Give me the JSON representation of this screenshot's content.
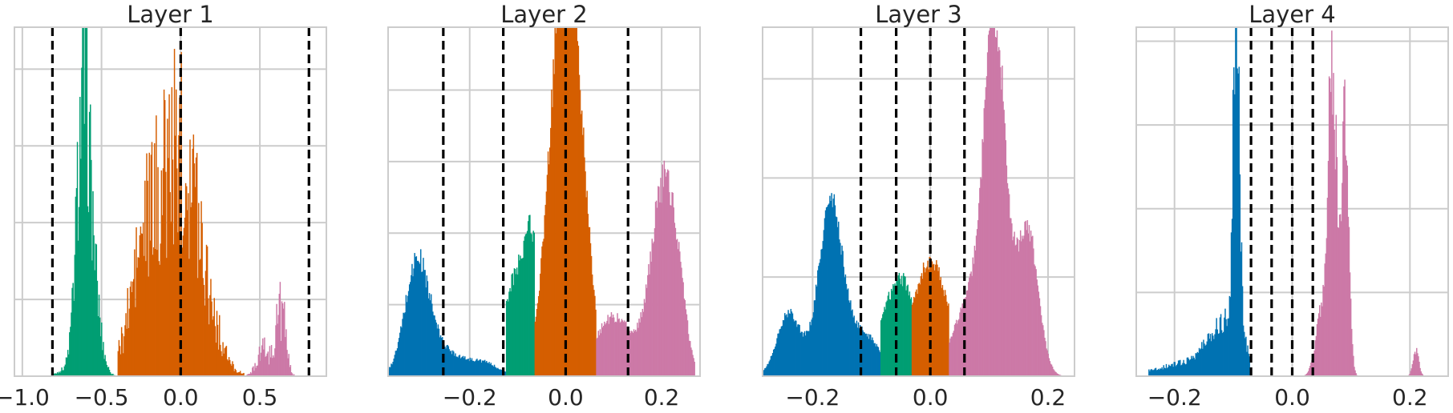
{
  "chart_data": [
    {
      "type": "histogram",
      "title": "Layer 1",
      "xlim": [
        -1.05,
        0.92
      ],
      "xticks": [
        -1.0,
        -0.5,
        0.0,
        0.5
      ],
      "xtick_labels": [
        "−1.0",
        "−0.5",
        "0.0",
        "0.5"
      ],
      "ylim": [
        0,
        1.0
      ],
      "yticks": [
        0.0,
        0.22,
        0.44,
        0.66,
        0.88
      ],
      "grid": true,
      "threshold_lines": [
        -0.81,
        0.0,
        0.81
      ],
      "series": [
        {
          "color": "#009E73",
          "range": [
            -0.81,
            -0.4
          ],
          "peaks": [
            [
              -0.71,
              0.02,
              0.06
            ],
            [
              -0.62,
              0.62,
              0.04
            ],
            [
              -0.57,
              0.3,
              0.05
            ]
          ],
          "noise": 0.35
        },
        {
          "color": "#D55E00",
          "range": [
            -0.4,
            0.4
          ],
          "peaks": [
            [
              -0.08,
              0.4,
              0.14
            ],
            [
              0.05,
              0.35,
              0.12
            ],
            [
              -0.25,
              0.18,
              0.08
            ]
          ],
          "noise": 0.45
        },
        {
          "color": "#CC79A7",
          "range": [
            0.4,
            0.81
          ],
          "peaks": [
            [
              0.52,
              0.08,
              0.04
            ],
            [
              0.63,
              0.2,
              0.03
            ]
          ],
          "noise": 0.5
        }
      ]
    },
    {
      "type": "histogram",
      "title": "Layer 2",
      "xlim": [
        -0.37,
        0.28
      ],
      "xticks": [
        -0.2,
        0.0,
        0.2
      ],
      "xtick_labels": [
        "−0.2",
        "0.0",
        "0.2"
      ],
      "ylim": [
        0,
        1.0
      ],
      "yticks": [
        0.0,
        0.205,
        0.41,
        0.615,
        0.82
      ],
      "grid": true,
      "threshold_lines": [
        -0.255,
        -0.13,
        0.0,
        0.13
      ],
      "series": [
        {
          "color": "#0072B2",
          "range": [
            -0.37,
            -0.125
          ],
          "peaks": [
            [
              -0.31,
              0.31,
              0.025
            ],
            [
              -0.255,
              0.07,
              0.04
            ],
            [
              -0.17,
              0.035,
              0.03
            ]
          ],
          "noise": 0.12
        },
        {
          "color": "#009E73",
          "range": [
            -0.125,
            -0.065
          ],
          "peaks": [
            [
              -0.12,
              0.18,
              0.02
            ],
            [
              -0.07,
              0.42,
              0.025
            ]
          ],
          "noise": 0.1
        },
        {
          "color": "#D55E00",
          "range": [
            -0.065,
            0.063
          ],
          "peaks": [
            [
              -0.005,
              0.98,
              0.03
            ],
            [
              0.02,
              0.35,
              0.03
            ]
          ],
          "noise": 0.08
        },
        {
          "color": "#CC79A7",
          "range": [
            0.063,
            0.27
          ],
          "peaks": [
            [
              0.1,
              0.17,
              0.04
            ],
            [
              0.2,
              0.48,
              0.025
            ],
            [
              0.23,
              0.2,
              0.02
            ]
          ],
          "noise": 0.1
        }
      ]
    },
    {
      "type": "histogram",
      "title": "Layer 3",
      "xlim": [
        -0.285,
        0.245
      ],
      "xticks": [
        -0.2,
        0.0,
        0.2
      ],
      "xtick_labels": [
        "−0.2",
        "0.0",
        "0.2"
      ],
      "ylim": [
        0,
        1.0
      ],
      "yticks": [
        0.0,
        0.284,
        0.568,
        0.852
      ],
      "grid": true,
      "threshold_lines": [
        -0.118,
        -0.058,
        0.0,
        0.058
      ],
      "series": [
        {
          "color": "#0072B2",
          "range": [
            -0.285,
            -0.085
          ],
          "peaks": [
            [
              -0.17,
              0.48,
              0.02
            ],
            [
              -0.24,
              0.18,
              0.02
            ],
            [
              -0.115,
              0.12,
              0.03
            ]
          ],
          "noise": 0.08
        },
        {
          "color": "#009E73",
          "range": [
            -0.085,
            -0.032
          ],
          "peaks": [
            [
              -0.055,
              0.24,
              0.03
            ],
            [
              -0.04,
              0.05,
              0.02
            ]
          ],
          "noise": 0.08
        },
        {
          "color": "#D55E00",
          "range": [
            -0.032,
            0.032
          ],
          "peaks": [
            [
              0.0,
              0.33,
              0.03
            ]
          ],
          "noise": 0.07
        },
        {
          "color": "#CC79A7",
          "range": [
            0.032,
            0.245
          ],
          "peaks": [
            [
              0.11,
              0.95,
              0.018
            ],
            [
              0.165,
              0.42,
              0.018
            ],
            [
              0.07,
              0.22,
              0.03
            ]
          ],
          "noise": 0.07
        }
      ]
    },
    {
      "type": "histogram",
      "title": "Layer 4",
      "xlim": [
        -0.265,
        0.265
      ],
      "xticks": [
        -0.2,
        0.0,
        0.2
      ],
      "xtick_labels": [
        "−0.2",
        "0.0",
        "0.2"
      ],
      "ylim": [
        0,
        1.0
      ],
      "yticks": [
        0.0,
        0.24,
        0.48,
        0.72,
        0.96
      ],
      "grid": true,
      "threshold_lines": [
        -0.07,
        -0.035,
        0.0,
        0.035
      ],
      "series": [
        {
          "color": "#0072B2",
          "range": [
            -0.245,
            -0.072
          ],
          "peaks": [
            [
              -0.095,
              1.0,
              0.005
            ],
            [
              -0.11,
              0.15,
              0.03
            ],
            [
              -0.18,
              0.035,
              0.05
            ]
          ],
          "noise": 0.25
        },
        {
          "color": "#CC79A7",
          "range": [
            0.015,
            0.24
          ],
          "peaks": [
            [
              0.068,
              0.9,
              0.007
            ],
            [
              0.09,
              0.75,
              0.006
            ],
            [
              0.05,
              0.2,
              0.01
            ],
            [
              0.21,
              0.07,
              0.005
            ]
          ],
          "noise": 0.2
        }
      ]
    }
  ]
}
